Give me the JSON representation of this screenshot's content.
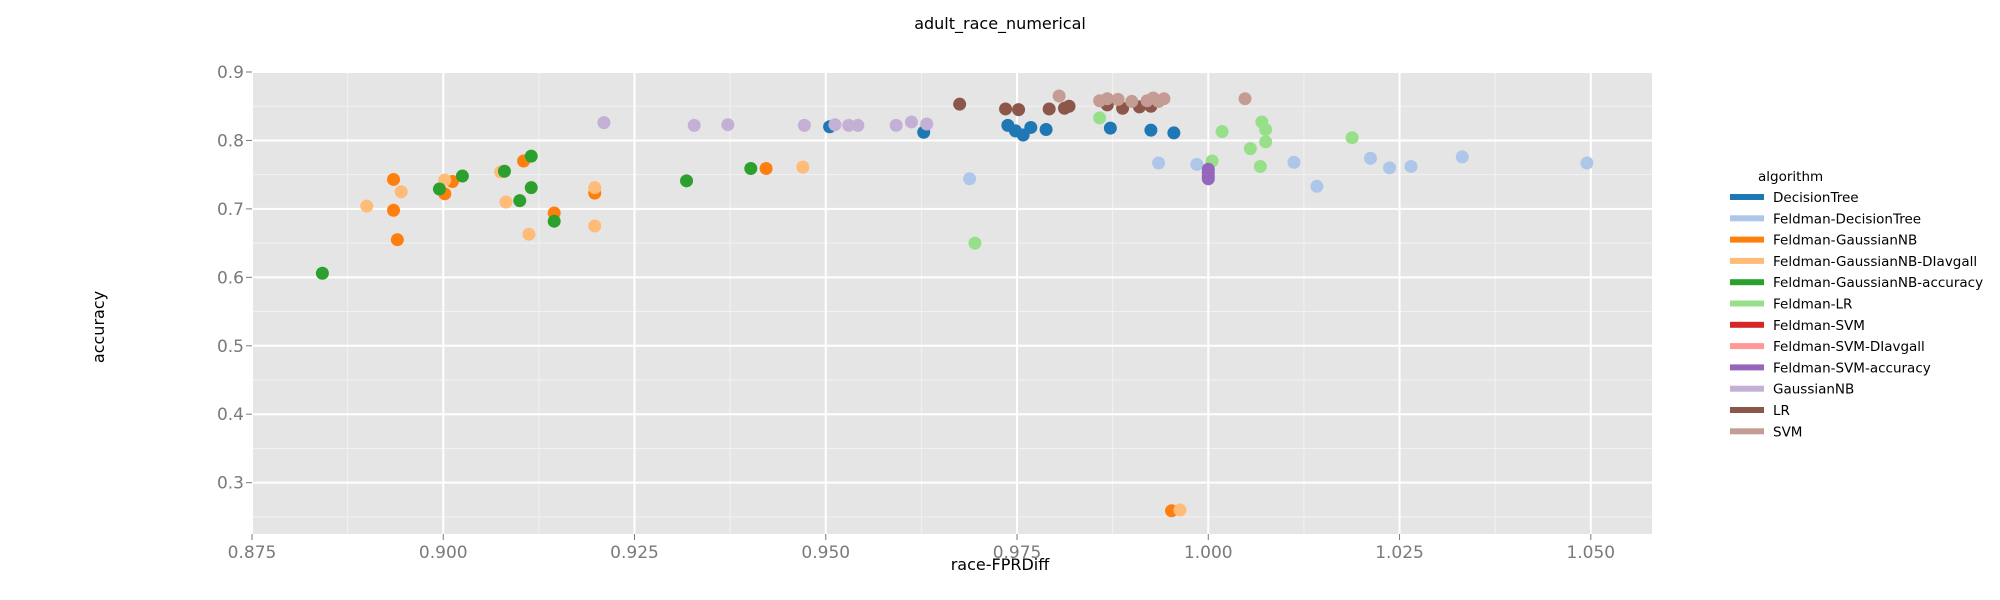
{
  "chart_data": {
    "type": "scatter",
    "title": "adult_race_numerical",
    "xlabel": "race-FPRDiff",
    "ylabel": "accuracy",
    "xlim": [
      0.875,
      1.058
    ],
    "ylim": [
      0.225,
      0.9
    ],
    "x_ticks": [
      "0.875",
      "0.900",
      "0.925",
      "0.950",
      "0.975",
      "1.000",
      "1.025",
      "1.050"
    ],
    "y_ticks": [
      "0.3",
      "0.4",
      "0.5",
      "0.6",
      "0.7",
      "0.8",
      "0.9"
    ],
    "grid": true,
    "legend_title": "algorithm",
    "legend_position": "right",
    "series": [
      {
        "name": "DecisionTree",
        "color": "#1f77b4",
        "points": [
          [
            0.9505,
            0.82
          ],
          [
            0.9628,
            0.812
          ],
          [
            0.9738,
            0.822
          ],
          [
            0.9748,
            0.814
          ],
          [
            0.9758,
            0.808
          ],
          [
            0.9768,
            0.819
          ],
          [
            0.9788,
            0.816
          ],
          [
            0.9872,
            0.818
          ],
          [
            0.9925,
            0.815
          ],
          [
            0.9955,
            0.811
          ]
        ]
      },
      {
        "name": "Feldman-DecisionTree",
        "color": "#aec7e8",
        "points": [
          [
            0.9688,
            0.744
          ],
          [
            0.9935,
            0.767
          ],
          [
            0.9985,
            0.765
          ],
          [
            1.0112,
            0.768
          ],
          [
            1.0142,
            0.733
          ],
          [
            1.0212,
            0.774
          ],
          [
            1.0237,
            0.76
          ],
          [
            1.0265,
            0.762
          ],
          [
            1.0332,
            0.776
          ],
          [
            1.0495,
            0.767
          ]
        ]
      },
      {
        "name": "Feldman-GaussianNB",
        "color": "#ff7f0e",
        "points": [
          [
            0.8935,
            0.743
          ],
          [
            0.8935,
            0.698
          ],
          [
            0.894,
            0.655
          ],
          [
            0.9002,
            0.722
          ],
          [
            0.9012,
            0.74
          ],
          [
            0.9105,
            0.77
          ],
          [
            0.9145,
            0.694
          ],
          [
            0.9198,
            0.723
          ],
          [
            0.9422,
            0.759
          ],
          [
            0.9952,
            0.259
          ]
        ]
      },
      {
        "name": "Feldman-GaussianNB-DIavgall",
        "color": "#ffbb78",
        "points": [
          [
            0.89,
            0.704
          ],
          [
            0.8945,
            0.725
          ],
          [
            0.9002,
            0.742
          ],
          [
            0.9075,
            0.754
          ],
          [
            0.9082,
            0.71
          ],
          [
            0.9112,
            0.663
          ],
          [
            0.9198,
            0.675
          ],
          [
            0.9198,
            0.731
          ],
          [
            0.947,
            0.761
          ],
          [
            0.9963,
            0.26
          ]
        ]
      },
      {
        "name": "Feldman-GaussianNB-accuracy",
        "color": "#2ca02c",
        "points": [
          [
            0.8842,
            0.606
          ],
          [
            0.8995,
            0.729
          ],
          [
            0.9025,
            0.748
          ],
          [
            0.908,
            0.755
          ],
          [
            0.91,
            0.712
          ],
          [
            0.9115,
            0.777
          ],
          [
            0.9115,
            0.731
          ],
          [
            0.9145,
            0.682
          ],
          [
            0.9318,
            0.741
          ],
          [
            0.9402,
            0.759
          ]
        ]
      },
      {
        "name": "Feldman-LR",
        "color": "#98df8a",
        "points": [
          [
            0.9695,
            0.65
          ],
          [
            0.9858,
            0.833
          ],
          [
            1.0005,
            0.77
          ],
          [
            1.0018,
            0.813
          ],
          [
            1.0055,
            0.788
          ],
          [
            1.0068,
            0.762
          ],
          [
            1.007,
            0.827
          ],
          [
            1.0075,
            0.816
          ],
          [
            1.0075,
            0.798
          ],
          [
            1.0188,
            0.804
          ]
        ]
      },
      {
        "name": "Feldman-SVM",
        "color": "#d62728",
        "points": []
      },
      {
        "name": "Feldman-SVM-DIavgall",
        "color": "#ff9896",
        "points": []
      },
      {
        "name": "Feldman-SVM-accuracy",
        "color": "#9467bd",
        "points": [
          [
            1.0,
            0.758
          ],
          [
            1.0,
            0.753
          ],
          [
            1.0,
            0.748
          ],
          [
            1.0,
            0.744
          ]
        ]
      },
      {
        "name": "GaussianNB",
        "color": "#c5b0d5",
        "points": [
          [
            0.921,
            0.826
          ],
          [
            0.9328,
            0.822
          ],
          [
            0.9372,
            0.823
          ],
          [
            0.9472,
            0.822
          ],
          [
            0.9512,
            0.823
          ],
          [
            0.953,
            0.822
          ],
          [
            0.9542,
            0.822
          ],
          [
            0.9592,
            0.822
          ],
          [
            0.9612,
            0.827
          ],
          [
            0.9632,
            0.824
          ]
        ]
      },
      {
        "name": "LR",
        "color": "#8c564b",
        "points": [
          [
            0.9675,
            0.853
          ],
          [
            0.9735,
            0.846
          ],
          [
            0.9752,
            0.845
          ],
          [
            0.9792,
            0.846
          ],
          [
            0.9812,
            0.847
          ],
          [
            0.9818,
            0.85
          ],
          [
            0.9868,
            0.852
          ],
          [
            0.9888,
            0.847
          ],
          [
            0.991,
            0.849
          ],
          [
            0.9925,
            0.85
          ]
        ]
      },
      {
        "name": "SVM",
        "color": "#c49c94",
        "points": [
          [
            0.9805,
            0.865
          ],
          [
            0.9858,
            0.858
          ],
          [
            0.9868,
            0.861
          ],
          [
            0.9882,
            0.86
          ],
          [
            0.99,
            0.857
          ],
          [
            0.992,
            0.858
          ],
          [
            0.9928,
            0.862
          ],
          [
            0.9935,
            0.857
          ],
          [
            0.9942,
            0.861
          ],
          [
            1.0048,
            0.861
          ]
        ]
      }
    ]
  }
}
